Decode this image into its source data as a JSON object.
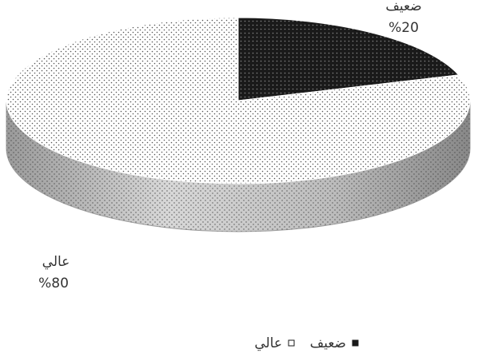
{
  "chart_data": {
    "type": "pie3d",
    "categories": [
      "ضعيف",
      "عالي"
    ],
    "values": [
      20,
      80
    ],
    "value_labels": [
      "%20",
      "%80"
    ],
    "colors": [
      "#1a1a1a",
      "#ffffff"
    ],
    "legend": "bottom"
  }
}
